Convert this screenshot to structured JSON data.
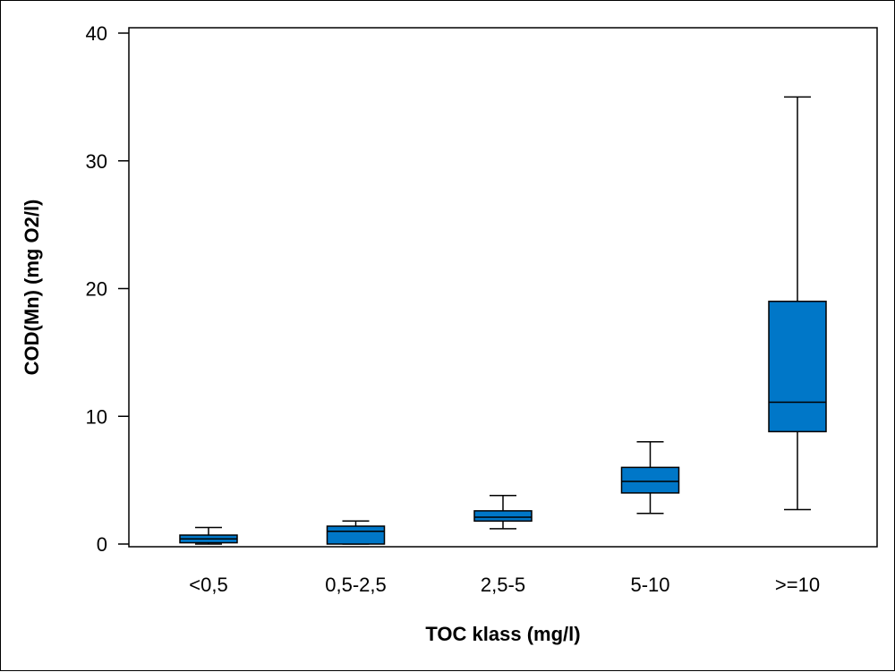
{
  "chart_data": {
    "type": "boxplot",
    "title": "",
    "xlabel": "TOC klass (mg/l)",
    "ylabel": "COD(Mn) (mg O2/l)",
    "ylim": [
      0,
      40
    ],
    "yticks": [
      0,
      10,
      20,
      30,
      40
    ],
    "categories": [
      "<0,5",
      "0,5-2,5",
      "2,5-5",
      "5-10",
      ">=10"
    ],
    "boxes": [
      {
        "category": "<0,5",
        "min": 0.0,
        "q1": 0.1,
        "median": 0.4,
        "q3": 0.7,
        "max": 1.3
      },
      {
        "category": "0,5-2,5",
        "min": 0.0,
        "q1": 0.0,
        "median": 1.0,
        "q3": 1.4,
        "max": 1.8
      },
      {
        "category": "2,5-5",
        "min": 1.2,
        "q1": 1.8,
        "median": 2.1,
        "q3": 2.6,
        "max": 3.8
      },
      {
        "category": "5-10",
        "min": 2.4,
        "q1": 4.0,
        "median": 4.9,
        "q3": 6.0,
        "max": 8.0
      },
      {
        "category": ">=10",
        "min": 2.7,
        "q1": 8.8,
        "median": 11.1,
        "q3": 19.0,
        "max": 35.0
      }
    ],
    "box_color": "#0077C8",
    "grid": false,
    "legend": "none"
  }
}
